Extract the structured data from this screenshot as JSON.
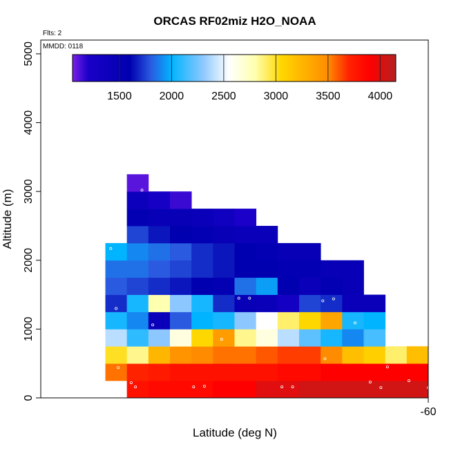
{
  "chart_data": {
    "type": "heatmap",
    "title": "ORCAS RF02miz H2O_NOAA",
    "annotations": {
      "flights": "Flts: 2",
      "date": "MMDD: 0118"
    },
    "xlabel": "Latitude (deg N)",
    "ylabel": "Altitude (m)",
    "x_tick_labels": [
      "-60"
    ],
    "y_ticks": [
      0,
      1000,
      2000,
      3000,
      4000,
      5000
    ],
    "y_tick_labels": [
      "0",
      "1000",
      "2000",
      "3000",
      "4000",
      "5000"
    ],
    "ylim": [
      0,
      5200
    ],
    "altitude_bin_m": 250,
    "n_lat_bins": 18,
    "colorbar": {
      "range": [
        1050,
        4150
      ],
      "ticks": [
        1500,
        2000,
        2500,
        3000,
        3500,
        4000
      ],
      "tick_labels": [
        "1500",
        "2000",
        "2500",
        "3000",
        "3500",
        "4000"
      ],
      "color_stops": [
        {
          "value": 1050,
          "color": "#7a1fe8"
        },
        {
          "value": 1200,
          "color": "#1a00c8"
        },
        {
          "value": 1600,
          "color": "#0000b0"
        },
        {
          "value": 1800,
          "color": "#2a5ae0"
        },
        {
          "value": 2000,
          "color": "#00b4ff"
        },
        {
          "value": 2300,
          "color": "#8cc8ff"
        },
        {
          "value": 2550,
          "color": "#ffffff"
        },
        {
          "value": 2800,
          "color": "#ffffb0"
        },
        {
          "value": 3050,
          "color": "#ffd700"
        },
        {
          "value": 3500,
          "color": "#ff8c00"
        },
        {
          "value": 3700,
          "color": "#ff2200"
        },
        {
          "value": 3900,
          "color": "#ff0000"
        },
        {
          "value": 4150,
          "color": "#b22222"
        }
      ]
    },
    "rows": [
      {
        "alt_bin": [
          0,
          250
        ],
        "start_col": 4,
        "values": [
          3800,
          3850,
          3850,
          3850,
          3900,
          3900,
          4000,
          4000,
          4050,
          4050,
          4050,
          4050,
          4050,
          4050
        ]
      },
      {
        "alt_bin": [
          250,
          500
        ],
        "start_col": 3,
        "values": [
          3550,
          3700,
          3750,
          3800,
          3800,
          3800,
          3800,
          3800,
          3850,
          3850,
          3900,
          3900,
          3900,
          3900,
          3900
        ]
      },
      {
        "alt_bin": [
          500,
          750
        ],
        "start_col": 3,
        "values": [
          3000,
          2850,
          3250,
          3450,
          3500,
          3550,
          3550,
          3600,
          3650,
          3650,
          3500,
          3200,
          3100,
          2900,
          3200
        ]
      },
      {
        "alt_bin": [
          750,
          1000
        ],
        "start_col": 3,
        "values": [
          2400,
          2100,
          2300,
          2650,
          3050,
          3400,
          2850,
          2650,
          2400,
          2200,
          2050,
          1900,
          2150
        ]
      },
      {
        "alt_bin": [
          1000,
          1250
        ],
        "start_col": 3,
        "values": [
          2050,
          1900,
          1450,
          1800,
          2000,
          2050,
          2300,
          2550,
          2900,
          3050,
          3350,
          2050,
          2000
        ]
      },
      {
        "alt_bin": [
          1250,
          1500
        ],
        "start_col": 3,
        "values": [
          1700,
          2050,
          2800,
          2300,
          2050,
          1700,
          1500,
          1450,
          1300,
          1750,
          1700,
          1450,
          1450
        ]
      },
      {
        "alt_bin": [
          1500,
          1750
        ],
        "start_col": 3,
        "values": [
          1800,
          1750,
          1700,
          1650,
          1600,
          1550,
          1850,
          1950,
          1600,
          1450,
          1550,
          1500
        ]
      },
      {
        "alt_bin": [
          1750,
          2000
        ],
        "start_col": 3,
        "values": [
          1850,
          1850,
          1800,
          1750,
          1700,
          1650,
          1600,
          1600,
          1550,
          1550,
          1500,
          1500
        ]
      },
      {
        "alt_bin": [
          2000,
          2250
        ],
        "start_col": 3,
        "values": [
          2000,
          1900,
          1850,
          1800,
          1700,
          1650,
          1600,
          1550,
          1500,
          1500
        ]
      },
      {
        "alt_bin": [
          2250,
          2500
        ],
        "start_col": 4,
        "values": [
          1750,
          1650,
          1600,
          1550,
          1500,
          1450,
          1450
        ]
      },
      {
        "alt_bin": [
          2500,
          2750
        ],
        "start_col": 4,
        "values": [
          1550,
          1500,
          1500,
          1450,
          1350,
          1200
        ]
      },
      {
        "alt_bin": [
          2750,
          3000
        ],
        "start_col": 4,
        "values": [
          1400,
          1250,
          1150
        ]
      },
      {
        "alt_bin": [
          3000,
          3250
        ],
        "start_col": 4,
        "values": [
          1100
        ]
      }
    ],
    "sample_points": [
      {
        "lat_col": 4.7,
        "alt": 3020
      },
      {
        "lat_col": 3.25,
        "alt": 2170
      },
      {
        "lat_col": 15.8,
        "alt": 1840
      },
      {
        "lat_col": 3.5,
        "alt": 1300
      },
      {
        "lat_col": 9.2,
        "alt": 1450
      },
      {
        "lat_col": 9.7,
        "alt": 1450
      },
      {
        "lat_col": 13.1,
        "alt": 1410
      },
      {
        "lat_col": 13.6,
        "alt": 1440
      },
      {
        "lat_col": 16.8,
        "alt": 1300
      },
      {
        "lat_col": 17.6,
        "alt": 1450
      },
      {
        "lat_col": 5.2,
        "alt": 1060
      },
      {
        "lat_col": 14.6,
        "alt": 1090
      },
      {
        "lat_col": 16.3,
        "alt": 970
      },
      {
        "lat_col": 8.4,
        "alt": 850
      },
      {
        "lat_col": 13.2,
        "alt": 570
      },
      {
        "lat_col": 3.6,
        "alt": 440
      },
      {
        "lat_col": 16.1,
        "alt": 450
      },
      {
        "lat_col": 4.2,
        "alt": 220
      },
      {
        "lat_col": 15.3,
        "alt": 230
      },
      {
        "lat_col": 17.1,
        "alt": 250
      },
      {
        "lat_col": 4.4,
        "alt": 160
      },
      {
        "lat_col": 7.1,
        "alt": 160
      },
      {
        "lat_col": 7.6,
        "alt": 170
      },
      {
        "lat_col": 11.2,
        "alt": 160
      },
      {
        "lat_col": 11.7,
        "alt": 160
      },
      {
        "lat_col": 15.8,
        "alt": 150
      },
      {
        "lat_col": 18.0,
        "alt": 150
      }
    ]
  }
}
